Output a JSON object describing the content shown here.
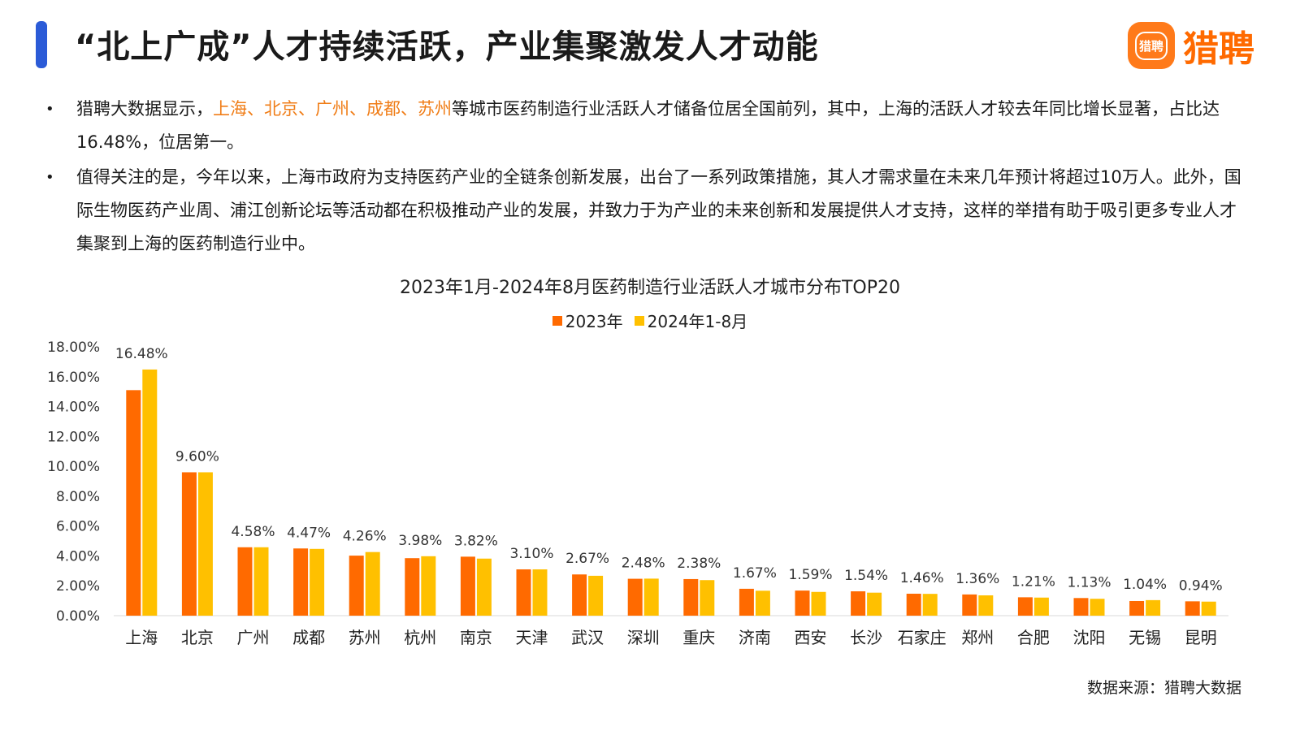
{
  "header": {
    "title": "“北上广成”人才持续活跃，产业集聚激发人才动能",
    "logo_badge": "猎聘",
    "logo_text": "猎聘"
  },
  "bullets": [
    {
      "prefix": "猎聘大数据显示，",
      "highlight": "上海、北京、广州、成都、苏州",
      "suffix": "等城市医药制造行业活跃人才储备位居全国前列，其中，上海的活跃人才较去年同比增长显著，占比达16.48%，位居第一。"
    },
    {
      "text": "值得关注的是，今年以来，上海市政府为支持医药产业的全链条创新发展，出台了一系列政策措施，其人才需求量在未来几年预计将超过10万人。此外，国际生物医药产业周、浦江创新论坛等活动都在积极推动产业的发展，并致力于为产业的未来创新和发展提供人才支持，这样的举措有助于吸引更多专业人才集聚到上海的医药制造行业中。"
    }
  ],
  "colors": {
    "accent": "#2b5bd7",
    "brand": "#ff6a00",
    "highlight": "#f07d17"
  },
  "chart_data": {
    "type": "bar",
    "title": "2023年1月-2024年8月医药制造行业活跃人才城市分布TOP20",
    "categories": [
      "上海",
      "北京",
      "广州",
      "成都",
      "苏州",
      "杭州",
      "南京",
      "天津",
      "武汉",
      "深圳",
      "重庆",
      "济南",
      "西安",
      "长沙",
      "石家庄",
      "郑州",
      "合肥",
      "沈阳",
      "无锡",
      "昆明"
    ],
    "series": [
      {
        "name": "2023年",
        "color": "#ff6a00",
        "values": [
          15.1,
          9.6,
          4.58,
          4.5,
          4.02,
          3.85,
          3.95,
          3.1,
          2.76,
          2.47,
          2.45,
          1.8,
          1.68,
          1.63,
          1.47,
          1.42,
          1.23,
          1.18,
          0.98,
          0.96
        ]
      },
      {
        "name": "2024年1-8月",
        "color": "#ffc000",
        "values": [
          16.48,
          9.6,
          4.58,
          4.47,
          4.26,
          3.98,
          3.82,
          3.1,
          2.67,
          2.48,
          2.38,
          1.67,
          1.59,
          1.54,
          1.46,
          1.36,
          1.21,
          1.13,
          1.04,
          0.94
        ]
      }
    ],
    "data_labels": [
      "16.48%",
      "9.60%",
      "4.58%",
      "4.47%",
      "4.26%",
      "3.98%",
      "3.82%",
      "3.10%",
      "2.67%",
      "2.48%",
      "2.38%",
      "1.67%",
      "1.59%",
      "1.54%",
      "1.46%",
      "1.36%",
      "1.21%",
      "1.13%",
      "1.04%",
      "0.94%"
    ],
    "yticks": [
      "0.00%",
      "2.00%",
      "4.00%",
      "6.00%",
      "8.00%",
      "10.00%",
      "12.00%",
      "14.00%",
      "16.00%",
      "18.00%"
    ],
    "ylim": [
      0,
      18
    ],
    "grid": false,
    "legend_position": "top-center"
  },
  "source": "数据来源：猎聘大数据"
}
